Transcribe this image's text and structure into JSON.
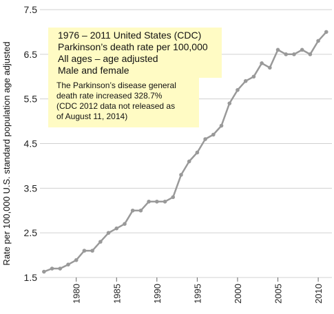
{
  "chart_data": {
    "type": "line",
    "ylabel": "Rate per 100,000 U.S. standard population age adjusted",
    "xlabel": "",
    "xlim": [
      1975.5,
      2011.7
    ],
    "ylim": [
      1.5,
      7.5
    ],
    "y_ticks": [
      "1.5",
      "2.5",
      "3.5",
      "4.5",
      "5.5",
      "6.5",
      "7.5"
    ],
    "x_ticks": [
      "1980",
      "1985",
      "1990",
      "1995",
      "2000",
      "2005",
      "2010"
    ],
    "grid": "horizontal",
    "line_color": "#999999",
    "series": [
      {
        "x": [
          1976,
          1977,
          1978,
          1979,
          1980,
          1981,
          1982,
          1983,
          1984,
          1985,
          1986,
          1987,
          1988,
          1989,
          1990,
          1991,
          1992,
          1993,
          1994,
          1995,
          1996,
          1997,
          1998,
          1999,
          2000,
          2001,
          2002,
          2003,
          2004,
          2005,
          2006,
          2007,
          2008,
          2009,
          2010,
          2011
        ],
        "values": [
          1.63,
          1.7,
          1.7,
          1.79,
          1.89,
          2.1,
          2.1,
          2.3,
          2.5,
          2.6,
          2.7,
          3.0,
          3.0,
          3.2,
          3.2,
          3.2,
          3.3,
          3.8,
          4.1,
          4.3,
          4.6,
          4.7,
          4.9,
          5.4,
          5.7,
          5.9,
          6.0,
          6.3,
          6.2,
          6.6,
          6.5,
          6.5,
          6.6,
          6.5,
          6.8,
          7.0
        ]
      }
    ]
  },
  "annotations": {
    "box1": [
      "1976 – 2011 United States (CDC)",
      "Parkinson’s death rate per 100,000",
      "All ages – age adjusted",
      "Male and female"
    ],
    "box2": [
      "The Parkinson’s disease general",
      "death rate increased 328.7%",
      "(CDC 2012 data not released as",
      "of August 11, 2014)"
    ],
    "box_color": "#fffbc4"
  }
}
